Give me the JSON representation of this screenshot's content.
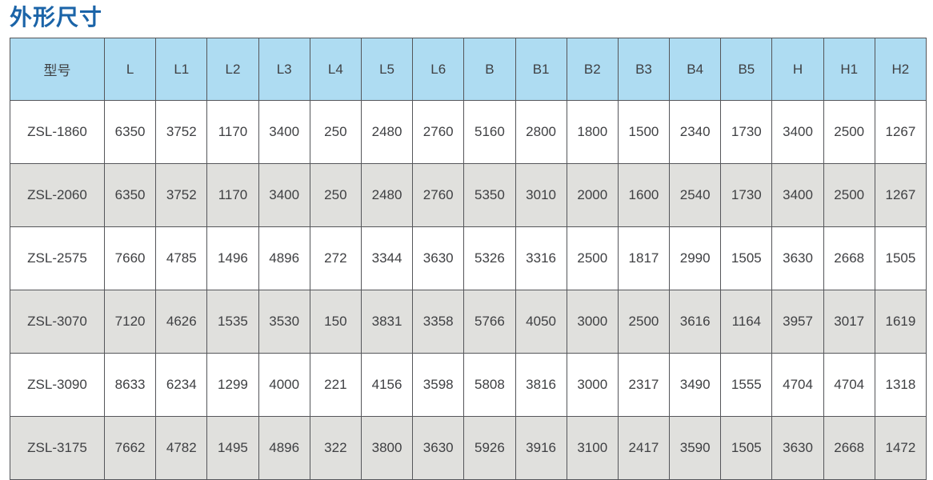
{
  "title": "外形尺寸",
  "colors": {
    "title_color": "#1b64a8",
    "header_bg": "#aedcf2",
    "row_bg": "#ffffff",
    "row_alt_bg": "#e0e0dd",
    "border_color": "#55565a",
    "text_color": "#3f4043"
  },
  "chart_data": {
    "type": "table",
    "title": "外形尺寸",
    "columns": [
      "型号",
      "L",
      "L1",
      "L2",
      "L3",
      "L4",
      "L5",
      "L6",
      "B",
      "B1",
      "B2",
      "B3",
      "B4",
      "B5",
      "H",
      "H1",
      "H2"
    ],
    "rows": [
      {
        "model": "ZSL-1860",
        "values": [
          6350,
          3752,
          1170,
          3400,
          250,
          2480,
          2760,
          5160,
          2800,
          1800,
          1500,
          2340,
          1730,
          3400,
          2500,
          1267
        ]
      },
      {
        "model": "ZSL-2060",
        "values": [
          6350,
          3752,
          1170,
          3400,
          250,
          2480,
          2760,
          5350,
          3010,
          2000,
          1600,
          2540,
          1730,
          3400,
          2500,
          1267
        ]
      },
      {
        "model": "ZSL-2575",
        "values": [
          7660,
          4785,
          1496,
          4896,
          272,
          3344,
          3630,
          5326,
          3316,
          2500,
          1817,
          2990,
          1505,
          3630,
          2668,
          1505
        ]
      },
      {
        "model": "ZSL-3070",
        "values": [
          7120,
          4626,
          1535,
          3530,
          150,
          3831,
          3358,
          5766,
          4050,
          3000,
          2500,
          3616,
          1164,
          3957,
          3017,
          1619
        ]
      },
      {
        "model": "ZSL-3090",
        "values": [
          8633,
          6234,
          1299,
          4000,
          221,
          4156,
          3598,
          5808,
          3816,
          3000,
          2317,
          3490,
          1555,
          4704,
          4704,
          1318
        ]
      },
      {
        "model": "ZSL-3175",
        "values": [
          7662,
          4782,
          1495,
          4896,
          322,
          3800,
          3630,
          5926,
          3916,
          3100,
          2417,
          3590,
          1505,
          3630,
          2668,
          1472
        ]
      }
    ]
  }
}
